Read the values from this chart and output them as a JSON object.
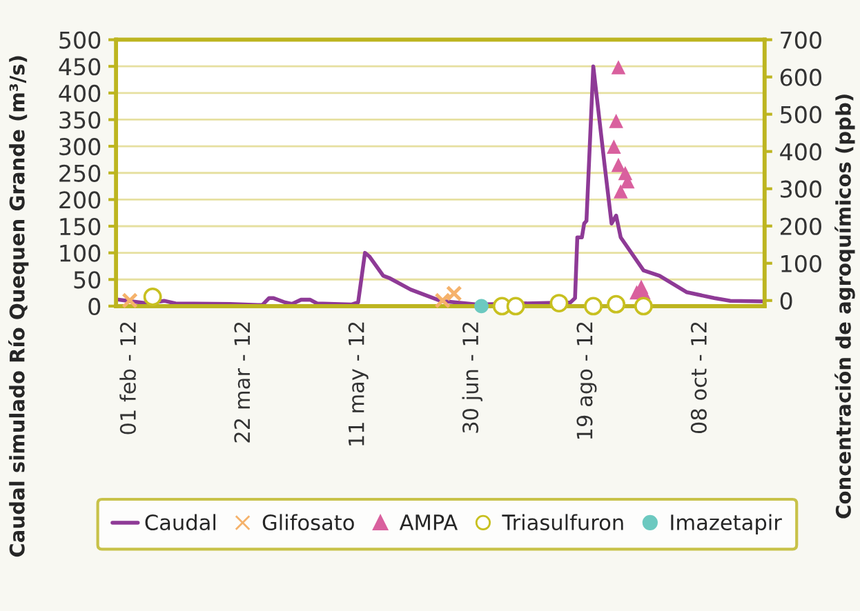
{
  "chart_data": {
    "type": "line",
    "ylabel": "Caudal simulado Río Quequen Grande (m³/s)",
    "y2label": "Concentración de agroquímicos (ppb)",
    "xlim": [
      "2012-01-26",
      "2012-11-05"
    ],
    "xticks": [
      {
        "value": "2012-02-01",
        "label": "01 feb - 12"
      },
      {
        "value": "2012-03-22",
        "label": "22 mar - 12"
      },
      {
        "value": "2012-05-11",
        "label": "11 may - 12"
      },
      {
        "value": "2012-06-30",
        "label": "30 jun - 12"
      },
      {
        "value": "2012-08-19",
        "label": "19 ago - 12"
      },
      {
        "value": "2012-10-08",
        "label": "08 oct - 12"
      }
    ],
    "ylim": [
      0,
      500
    ],
    "yticks": [
      0,
      50,
      100,
      150,
      200,
      250,
      300,
      350,
      400,
      450,
      500
    ],
    "y2lim": [
      -15,
      700
    ],
    "y2ticks": [
      0,
      100,
      200,
      300,
      400,
      500,
      600,
      700
    ],
    "grid": "y",
    "legend": "bottom",
    "series": [
      {
        "name": "Caudal",
        "color": "#8e3a96",
        "marker": "none",
        "x": [
          "2012-01-27",
          "2012-02-09",
          "2012-02-16",
          "2012-02-21",
          "2012-03-16",
          "2012-03-28",
          "2012-03-30",
          "2012-04-02",
          "2012-04-04",
          "2012-04-09",
          "2012-04-12",
          "2012-04-16",
          "2012-04-20",
          "2012-04-23",
          "2012-05-08",
          "2012-05-11",
          "2012-05-14",
          "2012-05-16",
          "2012-05-22",
          "2012-05-25",
          "2012-06-03",
          "2012-06-16",
          "2012-07-02",
          "2012-07-22",
          "2012-08-12",
          "2012-08-14",
          "2012-08-15",
          "2012-08-17",
          "2012-08-18",
          "2012-08-19",
          "2012-08-22",
          "2012-08-27",
          "2012-08-30",
          "2012-09-01",
          "2012-09-03",
          "2012-09-13",
          "2012-09-20",
          "2012-10-02",
          "2012-10-14",
          "2012-10-21",
          "2012-11-04"
        ],
        "values": [
          12,
          5,
          10,
          5,
          4,
          2,
          2,
          15,
          15,
          7,
          4,
          12,
          12,
          5,
          3,
          7,
          100,
          93,
          57,
          52,
          31,
          10,
          3,
          5,
          7,
          15,
          129,
          129,
          155,
          160,
          450,
          263,
          155,
          170,
          129,
          67,
          57,
          26,
          15,
          10,
          9
        ]
      },
      {
        "name": "Glifosato",
        "type": "scatter",
        "axis": "y2",
        "color": "#f5b26b",
        "marker": "cross",
        "x": [
          "2012-02-01",
          "2012-06-17",
          "2012-06-22"
        ],
        "values": [
          0,
          0,
          19
        ]
      },
      {
        "name": "AMPA",
        "type": "scatter",
        "axis": "y2",
        "color": "#d9609e",
        "marker": "triangle",
        "x": [
          "2012-09-02",
          "2012-09-01",
          "2012-08-31",
          "2012-09-02",
          "2012-09-05",
          "2012-09-06",
          "2012-09-03",
          "2012-09-10",
          "2012-09-12",
          "2012-09-13"
        ],
        "values": [
          626,
          482,
          413,
          364,
          342,
          320,
          293,
          22,
          37,
          22
        ]
      },
      {
        "name": "Triasulfuron",
        "type": "scatter",
        "axis": "y2",
        "color": "#c8c020",
        "marker": "circle",
        "x": [
          "2012-02-11",
          "2012-07-13",
          "2012-07-19",
          "2012-08-07",
          "2012-08-22",
          "2012-09-01",
          "2012-09-13"
        ],
        "values": [
          10,
          -15,
          -15,
          -7,
          -15,
          -10,
          -15
        ]
      },
      {
        "name": "Imazetapir",
        "type": "scatter",
        "axis": "y2",
        "color": "#6cc9c0",
        "marker": "circle",
        "x": [
          "2012-07-04"
        ],
        "values": [
          -15
        ]
      }
    ]
  }
}
